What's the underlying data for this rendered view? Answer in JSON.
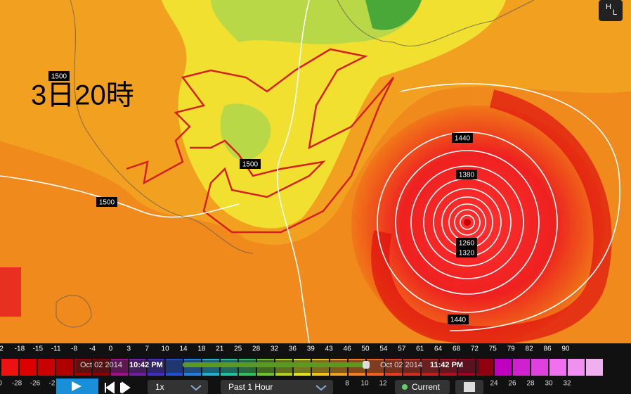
{
  "map": {
    "time_label": "3日20時",
    "contour_labels": [
      "1500",
      "1500",
      "1500",
      "1440",
      "1380",
      "1260",
      "1320",
      "1440"
    ],
    "legend_top": [
      "2",
      "-18",
      "-15",
      "-11",
      "-8",
      "-4",
      "0",
      "3",
      "7",
      "10",
      "14",
      "18",
      "21",
      "25",
      "28",
      "32",
      "36",
      "39",
      "43",
      "46",
      "50",
      "54",
      "57",
      "61",
      "64",
      "68",
      "72",
      "75",
      "79",
      "82",
      "86",
      "90"
    ],
    "legend_bottom": [
      "0",
      "-28",
      "-26",
      "-2",
      "8",
      "10",
      "12",
      "24",
      "26",
      "28",
      "30",
      "32"
    ],
    "timeline": {
      "start_date": "Oct 02 2014",
      "start_time": "10:42 PM",
      "end_date": "Oct 02 2014",
      "end_time": "11:42 PM"
    },
    "controls": {
      "speed": "1x",
      "range": "Past 1 Hour",
      "current": "Current",
      "badge_h": "H",
      "badge_l": "L"
    }
  }
}
